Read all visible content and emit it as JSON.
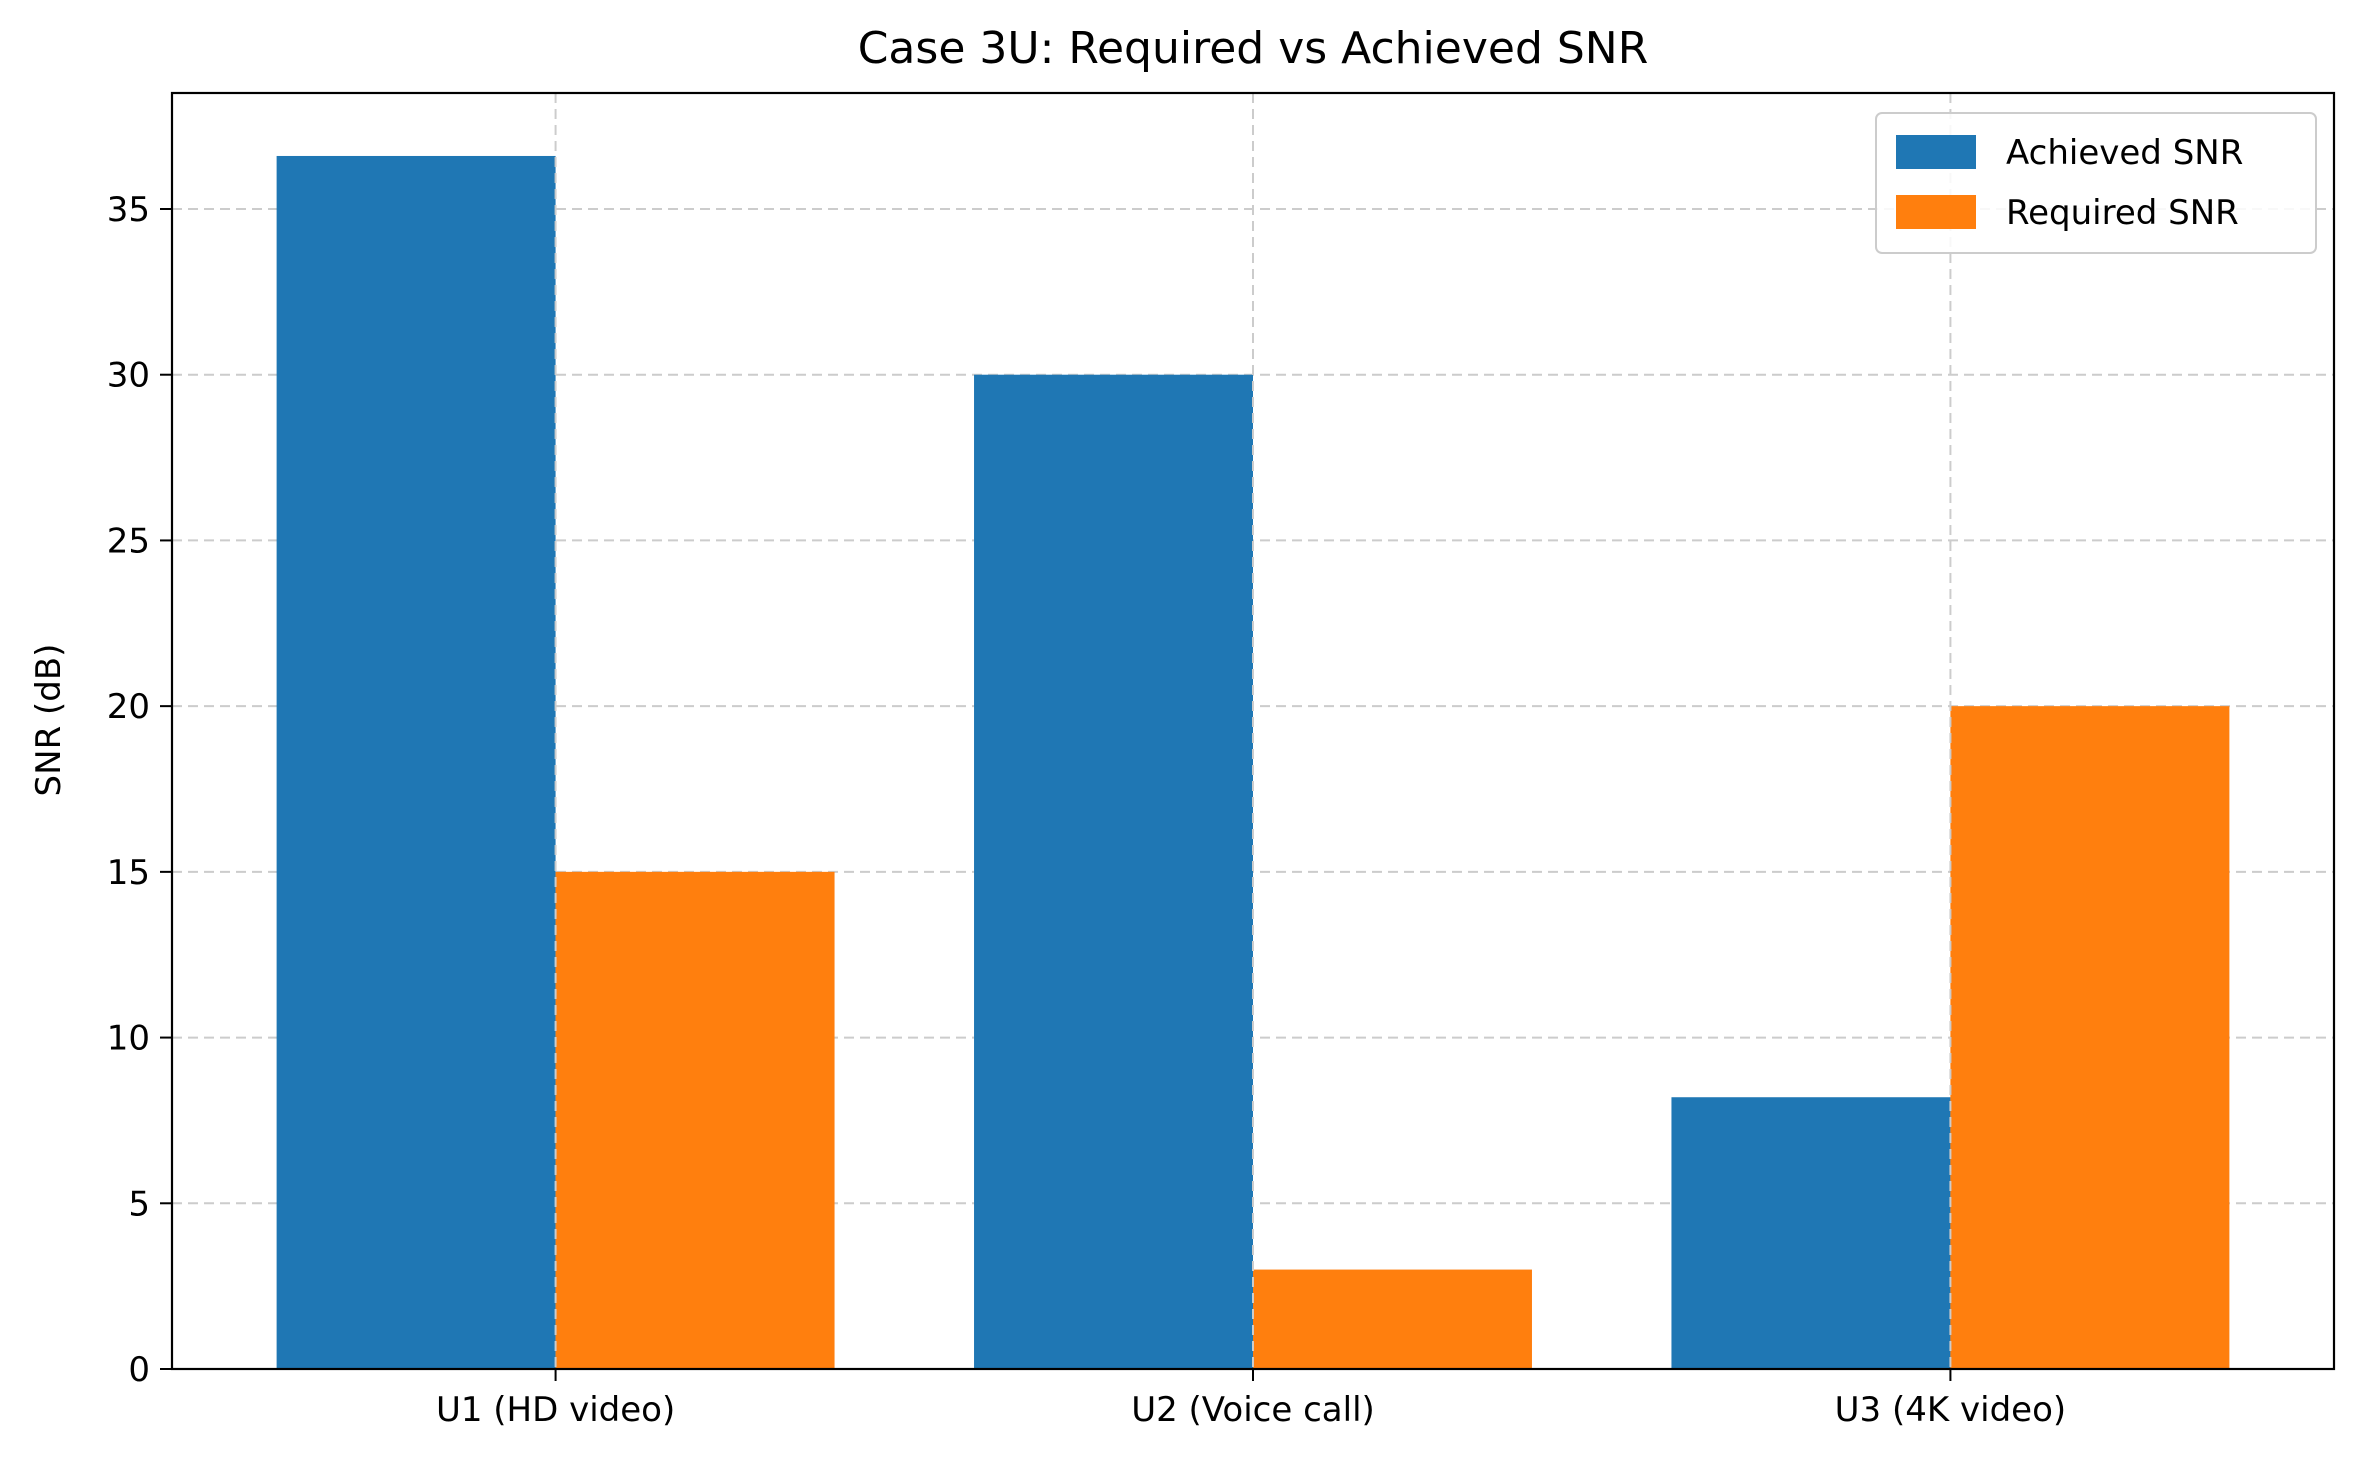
{
  "chart_data": {
    "type": "bar",
    "title": "Case 3U: Required vs Achieved SNR",
    "xlabel": "",
    "ylabel": "SNR (dB)",
    "categories": [
      "U1 (HD video)",
      "U2 (Voice call)",
      "U3 (4K video)"
    ],
    "series": [
      {
        "name": "Achieved SNR",
        "color": "#1f77b4",
        "values": [
          36.6,
          30.0,
          8.2
        ]
      },
      {
        "name": "Required SNR",
        "color": "#ff7f0e",
        "values": [
          15,
          3,
          20
        ]
      }
    ],
    "ylim": [
      0,
      38.5
    ],
    "yticks": [
      0,
      5,
      10,
      15,
      20,
      25,
      30,
      35
    ],
    "grid": true,
    "legend": "top-right"
  }
}
